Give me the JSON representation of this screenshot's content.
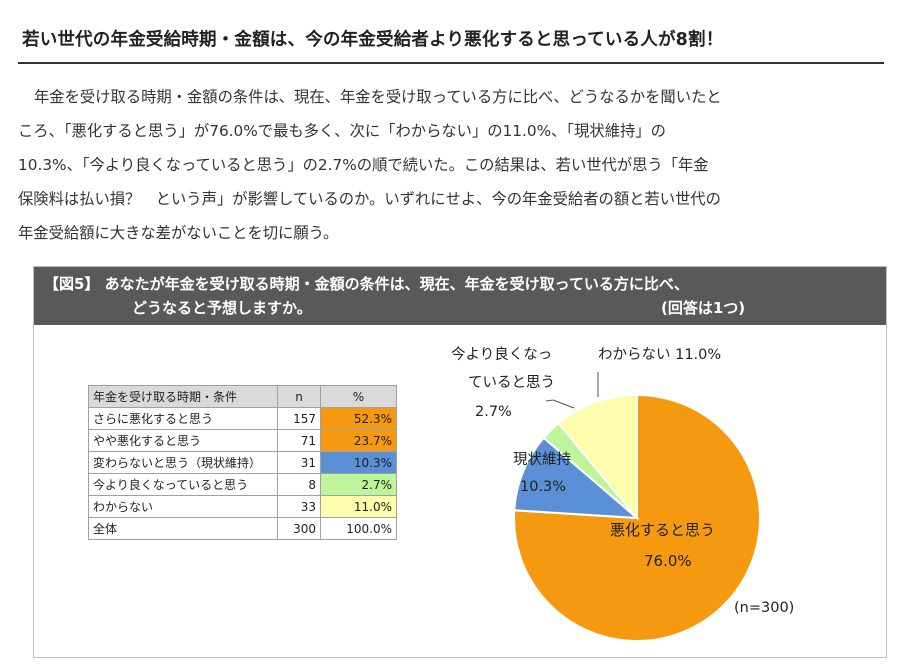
{
  "article": {
    "title": "若い世代の年金受給時期・金額は、今の年金受給者より悪化すると思っている人が8割！",
    "lines": [
      "年金を受け取る時期・金額の条件は、現在、年金を受け取っている方に比べ、どうなるかを聞いたと",
      "ころ、「悪化すると思う」が76.0%で最も多く、次に「わからない」の11.0%、「現状維持」の",
      "10.3%、「今より良くなっていると思う」の2.7%の順で続いた。この結果は、若い世代が思う「年金",
      "保険料は払い損？　という声」が影響しているのか。いずれにせよ、今の年金受給者の額と若い世代の",
      "年金受給額に大きな差がないことを切に願う。"
    ]
  },
  "figure": {
    "header_line1": "【図5】 あなたが年金を受け取る時期・金額の条件は、現在、年金を受け取っている方に比べ、",
    "header_line2": "どうなると予想しますか。",
    "header_note": "(回答は1つ)",
    "table": {
      "col_label": "年金を受け取る時期・条件",
      "col_n": "n",
      "col_pct": "%",
      "rows": [
        {
          "label": "さらに悪化すると思う",
          "n": "157",
          "pct": "52.3%",
          "color": "#f59a10"
        },
        {
          "label": "やや悪化すると思う",
          "n": "71",
          "pct": "23.7%",
          "color": "#f59a10"
        },
        {
          "label": "変わらないと思う（現状維持）",
          "n": "31",
          "pct": "10.3%",
          "color": "#5b8fd6"
        },
        {
          "label": "今より良くなっていると思う",
          "n": "8",
          "pct": "2.7%",
          "color": "#bff59a"
        },
        {
          "label": "わからない",
          "n": "33",
          "pct": "11.0%",
          "color": "#fdfdab"
        }
      ],
      "total": {
        "label": "全体",
        "n": "300",
        "pct": "100.0%"
      }
    }
  },
  "chart_data": {
    "type": "pie",
    "slices": [
      {
        "label": "悪化すると思う",
        "value": 76.0,
        "value_label": "76.0%",
        "color": "#f59a10"
      },
      {
        "label": "現状維持",
        "value": 10.3,
        "value_label": "10.3%",
        "color": "#5b8fd6"
      },
      {
        "label": "今より良くなっていると思う",
        "value": 2.7,
        "value_label": "2.7%",
        "color": "#bff59a"
      },
      {
        "label": "わからない",
        "value": 11.0,
        "value_label": "11.0%",
        "color": "#fdfdab"
      }
    ],
    "label_texts": {
      "worse": "悪化すると思う",
      "worse_value": "76.0%",
      "same": "現状維持",
      "same_value": "10.3%",
      "better_line1": "今より良くなっ",
      "better_line2": "ていると思う",
      "better_value": "2.7%",
      "unknown": "わからない 11.0%"
    },
    "n_note": "(n=300)",
    "start": "12 o'clock, clockwise"
  }
}
